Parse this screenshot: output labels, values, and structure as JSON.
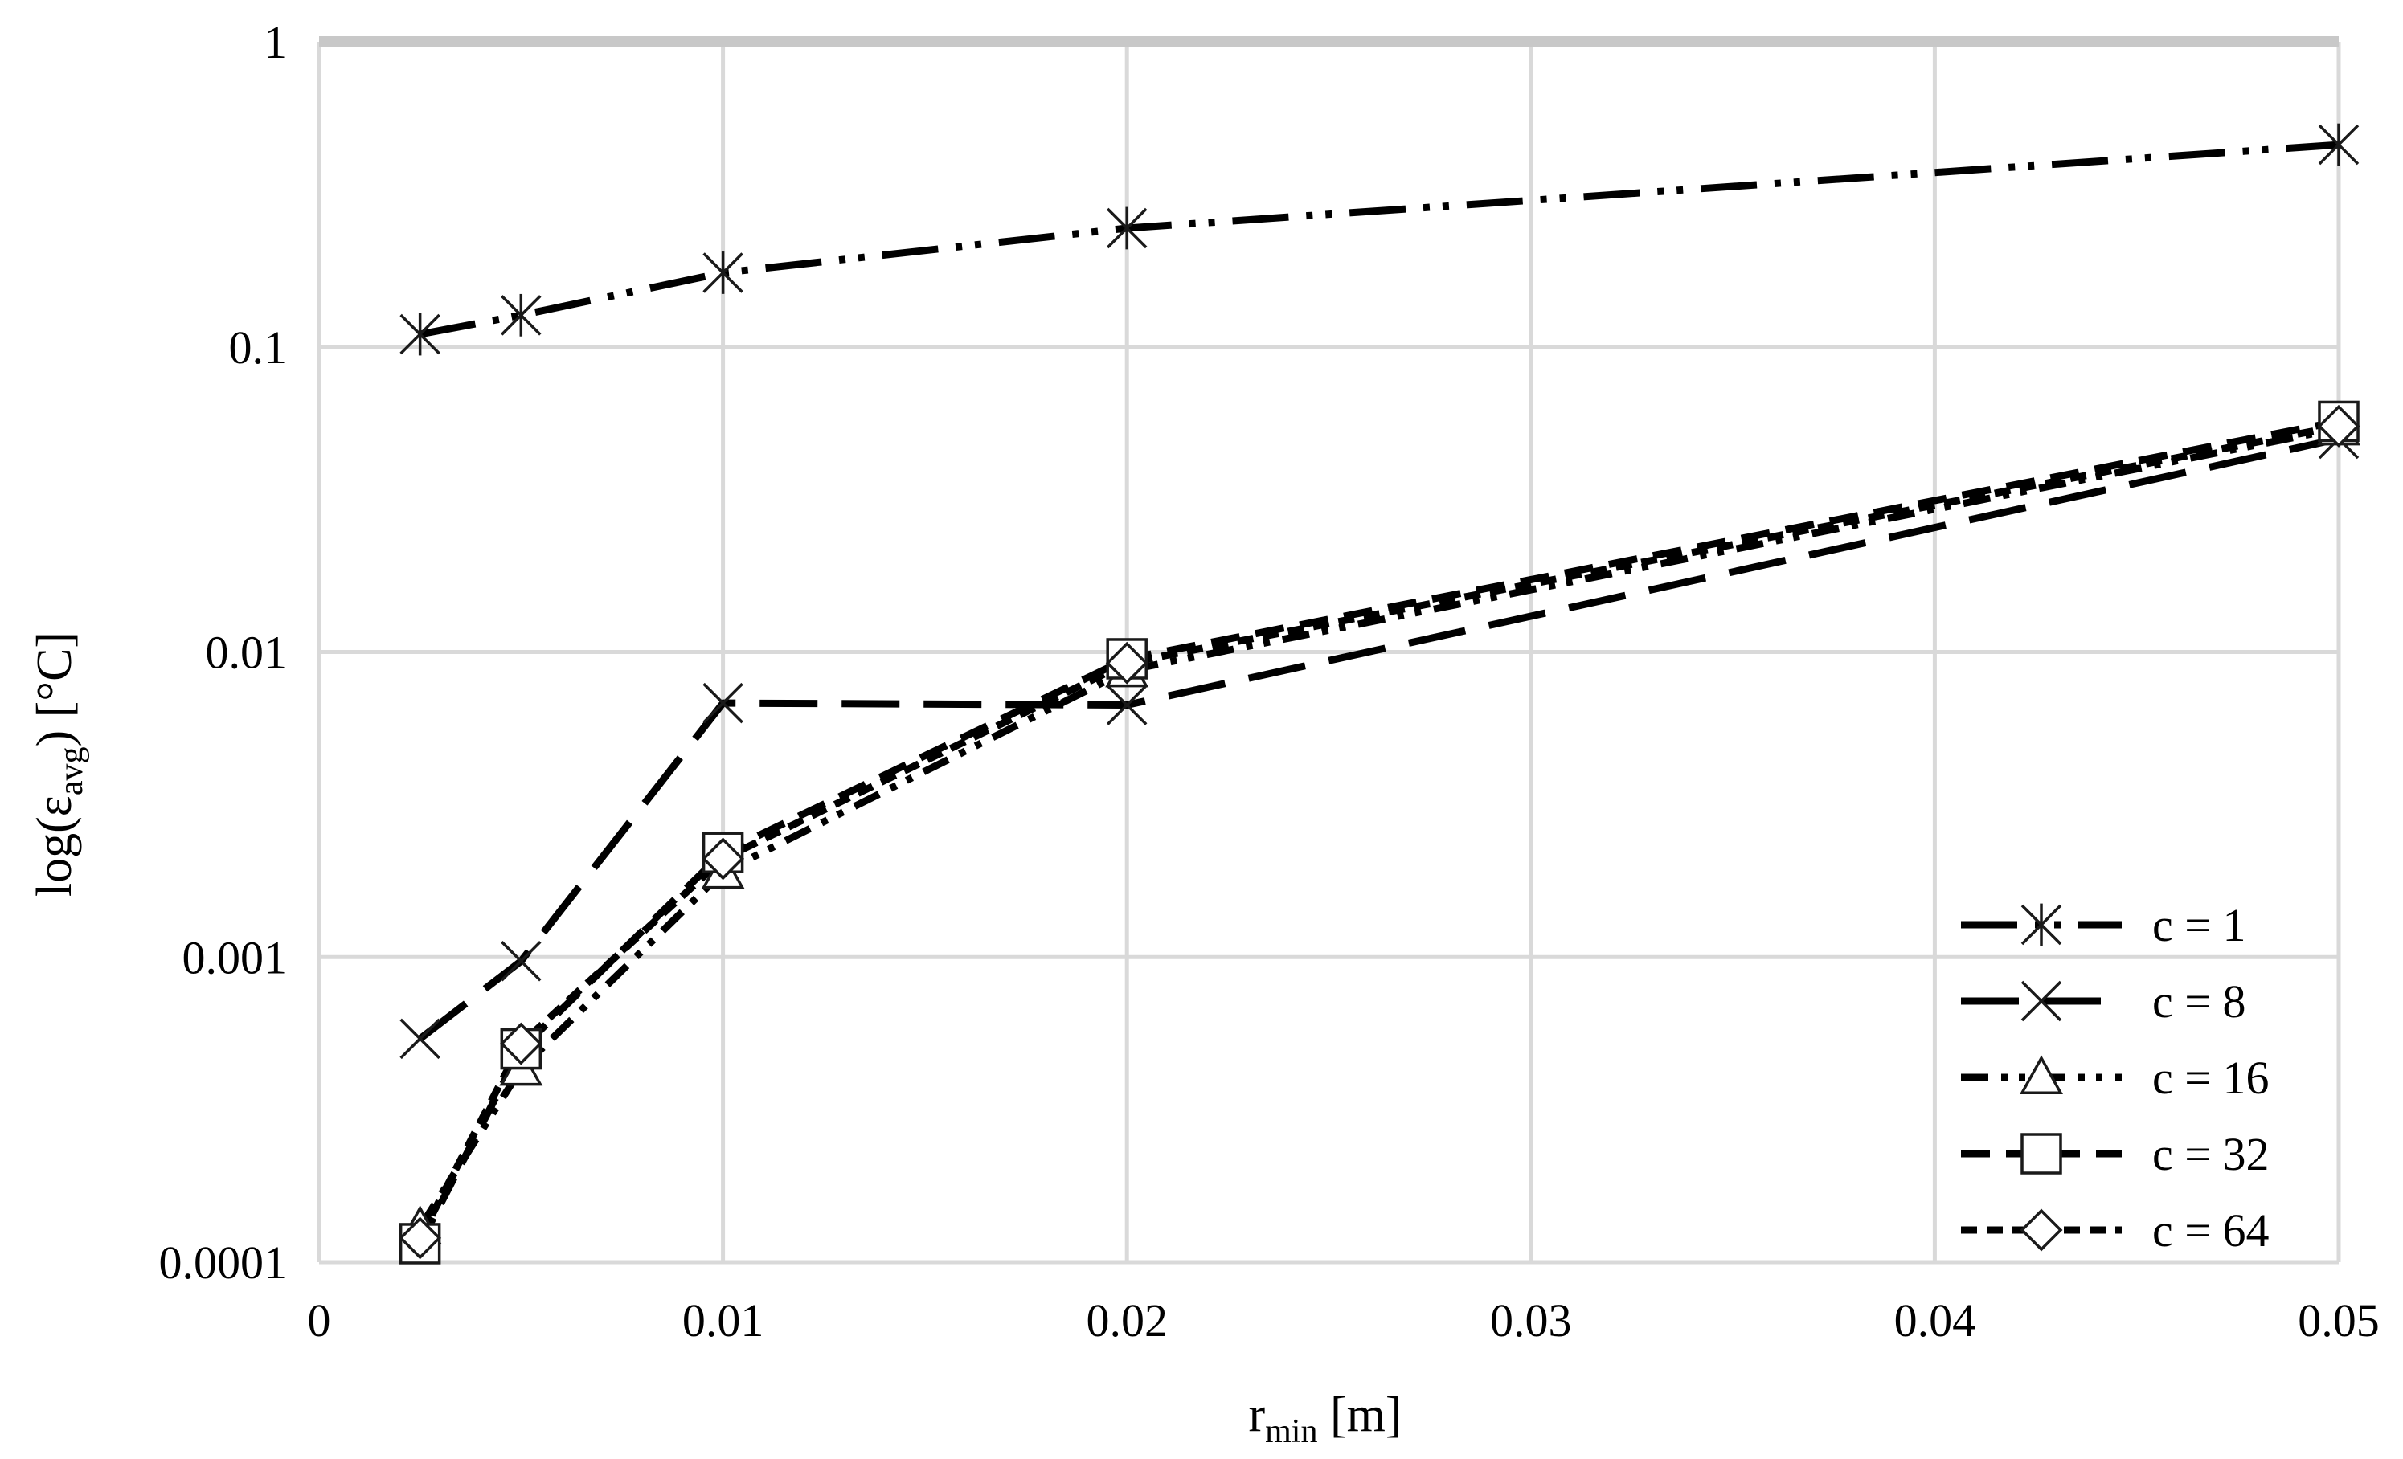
{
  "chart_data": {
    "type": "line",
    "title": "",
    "xlabel": "r",
    "xlabel_sub": "min",
    "xlabel_unit": " [m]",
    "ylabel": "log(ε",
    "ylabel_sub": "avg",
    "ylabel_unit": ") [°C]",
    "x_scale": "linear",
    "y_scale": "log",
    "xlim": [
      0,
      0.05
    ],
    "ylim": [
      0.0001,
      1
    ],
    "x_ticks": [
      0,
      0.01,
      0.02,
      0.03,
      0.04,
      0.05
    ],
    "x_tick_labels": [
      "0",
      "0.01",
      "0.02",
      "0.03",
      "0.04",
      "0.05"
    ],
    "y_ticks": [
      0.0001,
      0.001,
      0.01,
      0.1,
      1
    ],
    "y_tick_labels": [
      "0.0001",
      "0.001",
      "0.01",
      "0.1",
      "1"
    ],
    "grid": true,
    "legend_position": "bottom-right",
    "x": [
      0.0025,
      0.005,
      0.01,
      0.02,
      0.05
    ],
    "series": [
      {
        "name": "c = 1",
        "marker": "asterisk",
        "dash": "long-dash-dot-dot",
        "values": [
          0.11,
          0.127,
          0.175,
          0.245,
          0.46
        ]
      },
      {
        "name": "c = 8",
        "marker": "x",
        "dash": "long-dash",
        "values": [
          0.00054,
          0.00097,
          0.0068,
          0.0067,
          0.05
        ]
      },
      {
        "name": "c = 16",
        "marker": "triangle",
        "dash": "dash-dot-dot",
        "values": [
          0.00013,
          0.00043,
          0.0019,
          0.0087,
          0.054
        ]
      },
      {
        "name": "c = 32",
        "marker": "square",
        "dash": "dash",
        "values": [
          0.000115,
          0.0005,
          0.0022,
          0.0095,
          0.057
        ]
      },
      {
        "name": "c = 64",
        "marker": "diamond",
        "dash": "short-dash",
        "values": [
          0.00012,
          0.00052,
          0.0021,
          0.0092,
          0.055
        ]
      }
    ]
  }
}
